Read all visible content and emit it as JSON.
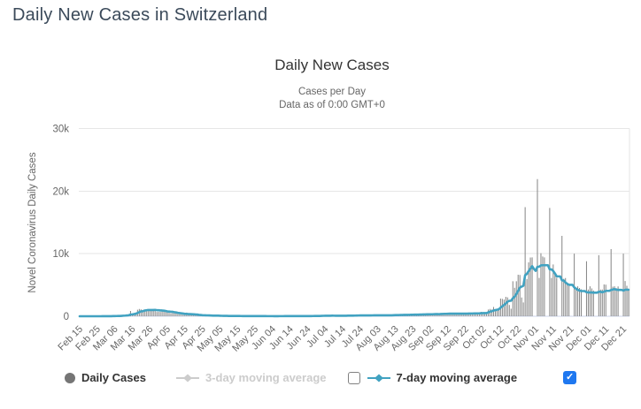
{
  "page": {
    "title": "Daily New Cases in Switzerland"
  },
  "chart": {
    "title": "Daily New Cases",
    "subtitle_line1": "Cases per Day",
    "subtitle_line2": "Data as of 0:00 GMT+0",
    "y_axis_title": "Novel Coronavirus Daily Cases"
  },
  "legend": {
    "daily_cases_label": "Daily Cases",
    "avg3_label": "3-day moving average",
    "avg7_label": "7-day moving average",
    "checkbox_3day_checked": false,
    "checkbox_7day_checked": true,
    "checkmark": "✓"
  },
  "colors": {
    "bars": "#8a8a8a",
    "avg7_line": "#41a2c1",
    "avg3_disabled": "#cccccc",
    "daily_marker": "#757575",
    "grid": "#e6e6e6",
    "axis_line": "#ccd6eb",
    "tick_label": "#666666",
    "checkbox_checked": "#1f78f0",
    "header_text": "#3b4a5a"
  },
  "chart_data": {
    "type": "bar",
    "title": "Daily New Cases",
    "subtitle": "Cases per Day — Data as of 0:00 GMT+0",
    "xlabel": "",
    "ylabel": "Novel Coronavirus Daily Cases",
    "ylim": [
      0,
      30000
    ],
    "grid": "horizontal",
    "legend_position": "bottom",
    "x_start_date": "Feb 15",
    "x_end_date": "Dec 24",
    "x_tick_interval": 10,
    "x_tick_labels": [
      "Feb 15",
      "Feb 25",
      "Mar 06",
      "Mar 16",
      "Mar 26",
      "Apr 05",
      "Apr 15",
      "Apr 25",
      "May 05",
      "May 15",
      "May 25",
      "Jun 04",
      "Jun 14",
      "Jun 24",
      "Jul 04",
      "Jul 14",
      "Jul 24",
      "Aug 03",
      "Aug 13",
      "Aug 23",
      "Sep 02",
      "Sep 12",
      "Sep 22",
      "Oct 02",
      "Oct 12",
      "Oct 22",
      "Nov 01",
      "Nov 11",
      "Nov 21",
      "Dec 01",
      "Dec 11",
      "Dec 21"
    ],
    "y_tick_values": [
      0,
      10000,
      20000,
      30000
    ],
    "y_tick_labels": [
      "0",
      "10k",
      "20k",
      "30k"
    ],
    "series": [
      {
        "name": "Daily Cases",
        "type": "bar",
        "values": [
          0,
          0,
          0,
          0,
          0,
          0,
          0,
          0,
          0,
          0,
          1,
          1,
          6,
          7,
          9,
          6,
          24,
          21,
          19,
          87,
          51,
          46,
          68,
          37,
          155,
          162,
          210,
          227,
          234,
          841,
          270,
          450,
          578,
          1038,
          1163,
          1103,
          998,
          1044,
          774,
          925,
          1000,
          1117,
          1148,
          1123,
          683,
          701,
          696,
          977,
          899,
          819,
          629,
          552,
          500,
          590,
          600,
          580,
          380,
          330,
          270,
          250,
          270,
          583,
          346,
          326,
          217,
          164,
          119,
          205,
          181,
          190,
          140,
          103,
          66,
          100,
          129,
          100,
          81,
          88,
          76,
          62,
          54,
          36,
          51,
          58,
          44,
          39,
          36,
          21,
          33,
          40,
          58,
          36,
          27,
          15,
          10,
          21,
          40,
          36,
          30,
          18,
          13,
          12,
          15,
          30,
          33,
          25,
          13,
          3,
          10,
          17,
          19,
          20,
          23,
          17,
          9,
          15,
          23,
          31,
          25,
          17,
          20,
          11,
          18,
          22,
          35,
          32,
          27,
          22,
          13,
          18,
          44,
          52,
          37,
          49,
          62,
          35,
          22,
          62,
          117,
          134,
          97,
          70,
          47,
          54,
          129,
          88,
          97,
          92,
          71,
          43,
          63,
          108,
          132,
          148,
          110,
          99,
          63,
          70,
          193,
          186,
          154,
          148,
          110,
          65,
          66,
          181,
          220,
          210,
          156,
          110,
          66,
          130,
          181,
          170,
          205,
          152,
          105,
          66,
          163,
          274,
          288,
          253,
          200,
          160,
          128,
          198,
          311,
          320,
          297,
          276,
          200,
          157,
          202,
          361,
          383,
          352,
          340,
          290,
          230,
          191,
          425,
          405,
          475,
          380,
          257,
          216,
          338,
          528,
          514,
          475,
          488,
          315,
          257,
          344,
          530,
          475,
          512,
          460,
          320,
          276,
          331,
          552,
          570,
          530,
          510,
          390,
          300,
          350,
          624,
          700,
          624,
          528,
          425,
          1077,
          1172,
          1077,
          1487,
          1092,
          880,
          1058,
          2823,
          2763,
          2660,
          3105,
          3012,
          1800,
          1200,
          5596,
          4560,
          5600,
          6634,
          6592,
          3000,
          2200,
          17440,
          5949,
          8616,
          9386,
          9409,
          0,
          0,
          21926,
          6126,
          10073,
          9545,
          9409,
          0,
          0,
          17309,
          6126,
          8270,
          6739,
          6147,
          0,
          0,
          12839,
          5980,
          6114,
          5252,
          4946,
          0,
          0,
          10002,
          4560,
          4786,
          4509,
          4312,
          0,
          0,
          8782,
          4262,
          4786,
          4455,
          4106,
          0,
          0,
          9751,
          4277,
          4271,
          5086,
          5040,
          0,
          0,
          10726,
          4721,
          4786,
          4478,
          4759,
          0,
          0,
          10002,
          5625,
          4876,
          4391
        ]
      },
      {
        "name": "3-day moving average",
        "type": "line",
        "visible": false,
        "derived_from": "Daily Cases"
      },
      {
        "name": "7-day moving average",
        "type": "line",
        "visible": true,
        "derived_from": "Daily Cases",
        "window": 7
      }
    ]
  }
}
